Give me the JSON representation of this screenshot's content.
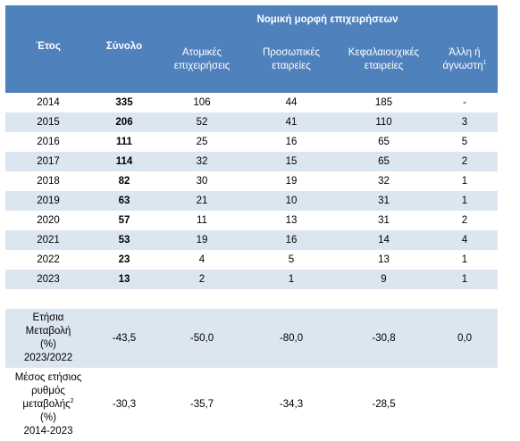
{
  "header": {
    "group_label": "Νομική μορφή επιχειρήσεων",
    "year": "Έτος",
    "total": "Σύνολο",
    "individual": [
      "Ατομικές",
      "επιχειρήσεις"
    ],
    "partnerships": [
      "Προσωπικές",
      "εταιρείες"
    ],
    "corporations": [
      "Κεφαλαιουχικές",
      "εταιρείες"
    ],
    "other": [
      "Άλλη ή",
      "άγνωστη"
    ],
    "other_sup": "1"
  },
  "rows": [
    {
      "year": "2014",
      "total": "335",
      "individual": "106",
      "partnerships": "44",
      "corporations": "185",
      "other": "-"
    },
    {
      "year": "2015",
      "total": "206",
      "individual": "52",
      "partnerships": "41",
      "corporations": "110",
      "other": "3"
    },
    {
      "year": "2016",
      "total": "111",
      "individual": "25",
      "partnerships": "16",
      "corporations": "65",
      "other": "5"
    },
    {
      "year": "2017",
      "total": "114",
      "individual": "32",
      "partnerships": "15",
      "corporations": "65",
      "other": "2"
    },
    {
      "year": "2018",
      "total": "82",
      "individual": "30",
      "partnerships": "19",
      "corporations": "32",
      "other": "1"
    },
    {
      "year": "2019",
      "total": "63",
      "individual": "21",
      "partnerships": "10",
      "corporations": "31",
      "other": "1"
    },
    {
      "year": "2020",
      "total": "57",
      "individual": "11",
      "partnerships": "13",
      "corporations": "31",
      "other": "2"
    },
    {
      "year": "2021",
      "total": "53",
      "individual": "19",
      "partnerships": "16",
      "corporations": "14",
      "other": "4"
    },
    {
      "year": "2022",
      "total": "23",
      "individual": "4",
      "partnerships": "5",
      "corporations": "13",
      "other": "1"
    },
    {
      "year": "2023",
      "total": "13",
      "individual": "2",
      "partnerships": "1",
      "corporations": "9",
      "other": "1"
    }
  ],
  "annual_change": {
    "label": [
      "Ετήσια",
      "Μεταβολή",
      "(%)",
      "2023/2022"
    ],
    "total": "-43,5",
    "individual": "-50,0",
    "partnerships": "-80,0",
    "corporations": "-30,8",
    "other": "0,0"
  },
  "avg_change": {
    "label_1": "Μέσος ετήσιος",
    "label_2": "ρυθμός",
    "label_3": "μεταβολής",
    "label_3_sup": "2",
    "label_4": "(%)",
    "label_5": "2014-2023",
    "total": "-30,3",
    "individual": "-35,7",
    "partnerships": "-34,3",
    "corporations": "-28,5",
    "other": ""
  }
}
